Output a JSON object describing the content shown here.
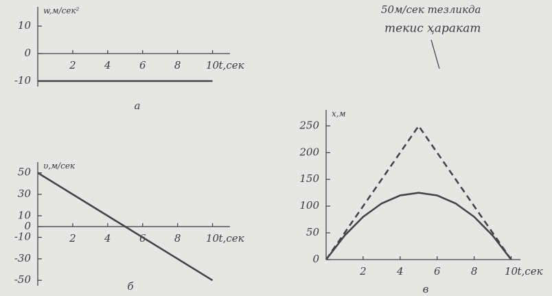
{
  "chart_data": [
    {
      "type": "line",
      "caption": "a",
      "ylabel": "w,м/сек²",
      "xlabel": "t,сек",
      "xlim": [
        0,
        11
      ],
      "ylim": [
        -12,
        17
      ],
      "xticks": [
        2,
        4,
        6,
        8,
        10
      ],
      "yticks": [
        10,
        0,
        -10
      ],
      "x": [
        0,
        10
      ],
      "series": [
        {
          "color": "#444444",
          "style": "solid",
          "values": [
            -10,
            -10
          ]
        }
      ]
    },
    {
      "type": "line",
      "caption": "б",
      "ylabel": "υ,м/сек",
      "xlabel": "t,сек",
      "xlim": [
        0,
        11
      ],
      "ylim": [
        -55,
        60
      ],
      "xticks": [
        2,
        4,
        6,
        8,
        10
      ],
      "yticks": [
        50,
        30,
        10,
        0,
        -10,
        -30,
        -50
      ],
      "x": [
        0,
        10
      ],
      "series": [
        {
          "color": "#444444",
          "style": "solid",
          "values": [
            50,
            -50
          ]
        }
      ]
    },
    {
      "type": "line",
      "caption": "в",
      "ylabel": "x,м",
      "xlabel": "t,сек",
      "annotation": [
        "50м/сек тезликда",
        "текис ҳаракат"
      ],
      "xlim": [
        0,
        10.5
      ],
      "ylim": [
        0,
        280
      ],
      "xticks": [
        2,
        4,
        6,
        8,
        10
      ],
      "yticks": [
        250,
        200,
        150,
        100,
        50,
        0
      ],
      "x": [
        0,
        1,
        2,
        3,
        4,
        5,
        6,
        7,
        8,
        9,
        10
      ],
      "series": [
        {
          "color": "#444444",
          "style": "solid",
          "values": [
            0,
            45,
            80,
            105,
            120,
            125,
            120,
            105,
            80,
            45,
            0
          ]
        },
        {
          "color": "#444444",
          "style": "dashed",
          "x": [
            0,
            5,
            10
          ],
          "values": [
            0,
            250,
            0
          ]
        }
      ]
    }
  ]
}
